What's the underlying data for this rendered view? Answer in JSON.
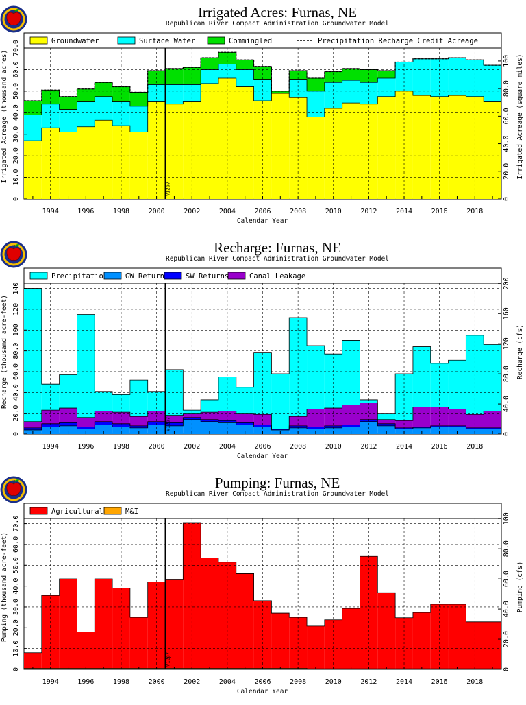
{
  "subtitle": "Republican River Compact Administration Groundwater Model",
  "xlabel": "Calendar Year",
  "vline": {
    "label": "V12p7",
    "year": 2000.5
  },
  "colors": {
    "groundwater": "#ffff00",
    "surface": "#00ffff",
    "commingled": "#00e000",
    "precip": "#00ffff",
    "gw_returns": "#0090ff",
    "sw_returns": "#0000ff",
    "canal": "#9900cc",
    "agricultural": "#ff0000",
    "mi": "#ffa500"
  },
  "chart_data": [
    {
      "type": "area",
      "title": "Irrigated Acres: Furnas, NE",
      "ylabel": "Irrigated Acreage (thousand acres)",
      "y2label": "Irrigated Acreage (square miles)",
      "ylim": [
        0,
        70
      ],
      "y2lim": [
        0,
        109.4
      ],
      "yticks": [
        "0",
        "10.0",
        "20.0",
        "30.0",
        "40.0",
        "50.0",
        "60.0",
        "70.0"
      ],
      "y2ticks": [
        "0",
        "20.0",
        "40.0",
        "60.0",
        "80.0",
        "100"
      ],
      "xticks": [
        "1994",
        "1996",
        "1998",
        "2000",
        "2002",
        "2004",
        "2006",
        "2008",
        "2010",
        "2012",
        "2014",
        "2016",
        "2018"
      ],
      "xlim": [
        1992.5,
        2019.5
      ],
      "legend": [
        "Groundwater",
        "Surface Water",
        "Commingled",
        "Precipitation Recharge Credit Acreage"
      ],
      "x": [
        1993,
        1994,
        1995,
        1996,
        1997,
        1998,
        1999,
        2000,
        2001,
        2002,
        2003,
        2004,
        2005,
        2006,
        2007,
        2008,
        2009,
        2010,
        2011,
        2012,
        2013,
        2014,
        2015,
        2016,
        2017,
        2018,
        2019
      ],
      "series": [
        {
          "name": "Groundwater",
          "values": [
            27.0,
            33.0,
            31.0,
            33.5,
            36.5,
            34.0,
            31.0,
            45.0,
            44.0,
            45.0,
            53.5,
            56.0,
            52.0,
            45.5,
            49.0,
            47.0,
            38.0,
            42.0,
            44.5,
            44.0,
            47.5,
            50.0,
            48.0,
            47.5,
            48.0,
            47.5,
            45.0
          ]
        },
        {
          "name": "Surface Water",
          "values": [
            12.0,
            11.0,
            10.5,
            11.5,
            11.0,
            11.0,
            12.0,
            8.0,
            9.0,
            8.0,
            6.5,
            6.5,
            8.0,
            10.0,
            0.0,
            8.5,
            12.0,
            12.0,
            10.5,
            10.0,
            8.5,
            13.5,
            17.0,
            17.5,
            17.5,
            17.0,
            17.0
          ]
        },
        {
          "name": "Commingled",
          "values": [
            6.5,
            6.5,
            6.0,
            6.0,
            6.5,
            7.0,
            6.5,
            6.5,
            7.5,
            8.0,
            5.5,
            5.5,
            4.5,
            6.0,
            1.0,
            4.0,
            6.0,
            5.0,
            5.5,
            6.0,
            3.5,
            0.0,
            0.0,
            0.0,
            0.0,
            0.0,
            0.0
          ]
        },
        {
          "name": "Precipitation Recharge Credit Acreage",
          "values": [
            45.5,
            50.5,
            47.5,
            51.0,
            54.0,
            52.0,
            49.5,
            59.5,
            60.5,
            61.0,
            65.5,
            68.0,
            64.5,
            61.5,
            50.0,
            59.5,
            56.0,
            59.0,
            60.5,
            60.0,
            59.5,
            63.5,
            65.0,
            65.0,
            65.5,
            64.5,
            62.0
          ]
        }
      ]
    },
    {
      "type": "area",
      "title": "Recharge: Furnas, NE",
      "ylabel": "Recharge (thousand acre-feet)",
      "y2label": "Recharge (cfs)",
      "ylim": [
        0,
        145
      ],
      "y2lim": [
        0,
        200.3
      ],
      "yticks": [
        "0",
        "20.0",
        "40.0",
        "60.0",
        "80.0",
        "100",
        "120",
        "140"
      ],
      "y2ticks": [
        "0",
        "40.0",
        "80.0",
        "120",
        "160",
        "200"
      ],
      "xticks": [
        "1994",
        "1996",
        "1998",
        "2000",
        "2002",
        "2004",
        "2006",
        "2008",
        "2010",
        "2012",
        "2014",
        "2016",
        "2018"
      ],
      "xlim": [
        1992.5,
        2019.5
      ],
      "legend": [
        "Precipitation",
        "GW Returns",
        "SW Returns",
        "Canal Leakage"
      ],
      "x": [
        1993,
        1994,
        1995,
        1996,
        1997,
        1998,
        1999,
        2000,
        2001,
        2002,
        2003,
        2004,
        2005,
        2006,
        2007,
        2008,
        2009,
        2010,
        2011,
        2012,
        2013,
        2014,
        2015,
        2016,
        2017,
        2018,
        2019
      ],
      "series": [
        {
          "name": "GW Returns",
          "values": [
            4,
            7,
            8,
            5,
            9,
            7,
            6,
            9,
            8,
            14,
            12,
            11,
            9,
            7,
            4,
            6,
            5,
            6,
            7,
            12,
            8,
            5,
            6,
            7,
            7,
            5,
            5
          ]
        },
        {
          "name": "SW Returns",
          "values": [
            2,
            3,
            3,
            2,
            3,
            3,
            2,
            3,
            3,
            2,
            2,
            2,
            2,
            2,
            1,
            2,
            2,
            2,
            2,
            2,
            2,
            1,
            1,
            1,
            1,
            1,
            1
          ]
        },
        {
          "name": "Canal Leakage",
          "values": [
            6,
            13,
            14,
            9,
            10,
            11,
            9,
            10,
            7,
            4,
            7,
            9,
            9,
            10,
            0,
            9,
            17,
            17,
            19,
            16,
            4,
            7,
            19,
            18,
            16,
            13,
            16
          ]
        },
        {
          "name": "Precipitation",
          "values": [
            128,
            25,
            32,
            99,
            19,
            17,
            35,
            19,
            44,
            3,
            12,
            33,
            25,
            59,
            53,
            95,
            61,
            52,
            62,
            3,
            6,
            45,
            58,
            42,
            47,
            76,
            64
          ]
        }
      ]
    },
    {
      "type": "bar",
      "title": "Pumping: Furnas, NE",
      "ylabel": "Pumping (thousand acre-feet)",
      "y2label": "Pumping (cfs)",
      "ylim": [
        0,
        72.5
      ],
      "y2lim": [
        0,
        100.1
      ],
      "yticks": [
        "0",
        "10.0",
        "20.0",
        "30.0",
        "40.0",
        "50.0",
        "60.0",
        "70.0"
      ],
      "y2ticks": [
        "0",
        "20.0",
        "40.0",
        "60.0",
        "80.0",
        "100"
      ],
      "xticks": [
        "1994",
        "1996",
        "1998",
        "2000",
        "2002",
        "2004",
        "2006",
        "2008",
        "2010",
        "2012",
        "2014",
        "2016",
        "2018"
      ],
      "xlim": [
        1992.5,
        2019.5
      ],
      "legend": [
        "Agricultural",
        "M&I"
      ],
      "x": [
        1993,
        1994,
        1995,
        1996,
        1997,
        1998,
        1999,
        2000,
        2001,
        2002,
        2003,
        2004,
        2005,
        2006,
        2007,
        2008,
        2009,
        2010,
        2011,
        2012,
        2013,
        2014,
        2015,
        2016,
        2017,
        2018,
        2019
      ],
      "series": [
        {
          "name": "M&I",
          "values": [
            0.5,
            0.5,
            0.5,
            0.5,
            0.5,
            0.5,
            0.5,
            0.5,
            0.5,
            0.5,
            0.5,
            0.5,
            0.5,
            0.5,
            0.5,
            0.5,
            0.3,
            0.3,
            0.3,
            0.3,
            0.3,
            0.3,
            0.3,
            0.3,
            0.3,
            0.3,
            0.3
          ]
        },
        {
          "name": "Agricultural",
          "values": [
            7.5,
            35.0,
            43.0,
            17.5,
            43.0,
            38.5,
            24.5,
            41.5,
            42.5,
            70.0,
            53.0,
            51.0,
            45.5,
            32.5,
            26.5,
            24.5,
            20.5,
            23.5,
            29.0,
            54.0,
            36.5,
            24.5,
            27.0,
            31.0,
            31.0,
            22.5,
            22.5
          ]
        }
      ]
    }
  ]
}
